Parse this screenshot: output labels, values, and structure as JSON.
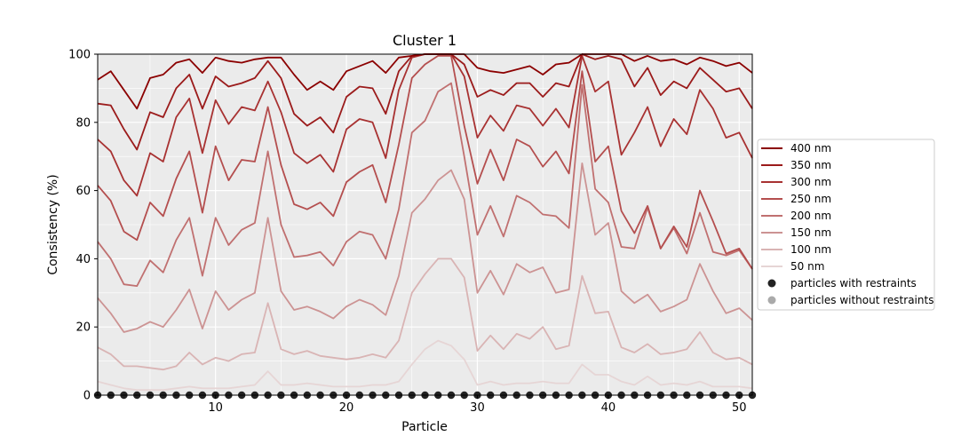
{
  "chart_data": {
    "type": "line",
    "title": "Cluster 1",
    "xlabel": "Particle",
    "ylabel": "Consistency (%)",
    "xlim": [
      1,
      51
    ],
    "ylim": [
      0,
      100
    ],
    "xticks": [
      10,
      20,
      30,
      40,
      50
    ],
    "yticks": [
      0,
      20,
      40,
      60,
      80,
      100
    ],
    "grid": true,
    "legend_position": "right",
    "x": [
      1,
      2,
      3,
      4,
      5,
      6,
      7,
      8,
      9,
      10,
      11,
      12,
      13,
      14,
      15,
      16,
      17,
      18,
      19,
      20,
      21,
      22,
      23,
      24,
      25,
      26,
      27,
      28,
      29,
      30,
      31,
      32,
      33,
      34,
      35,
      36,
      37,
      38,
      39,
      40,
      41,
      42,
      43,
      44,
      45,
      46,
      47,
      48,
      49,
      50,
      51
    ],
    "series": [
      {
        "name": "400 nm",
        "color": "#8b0000",
        "values": [
          92.5,
          95,
          89.5,
          84,
          93,
          94,
          97.5,
          98.5,
          94.5,
          99,
          98,
          97.5,
          98.5,
          99,
          99,
          94,
          89.5,
          92,
          89.5,
          95,
          96.5,
          98,
          94.5,
          99,
          99.5,
          100,
          100,
          100,
          100,
          96,
          95,
          94.5,
          95.5,
          96.5,
          94,
          97,
          97.5,
          100,
          100,
          100,
          100,
          98,
          99.5,
          98,
          98.5,
          97,
          99,
          98,
          96.5,
          97.5,
          94.5
        ]
      },
      {
        "name": "350 nm",
        "color": "#9b1b1b",
        "values": [
          85.5,
          85,
          78,
          72,
          83,
          81.5,
          90,
          94,
          84,
          93.5,
          90.5,
          91.5,
          93,
          98,
          93,
          82.5,
          79,
          81.5,
          77,
          87.5,
          90.5,
          90,
          82.5,
          95,
          99.5,
          100,
          100,
          100,
          97,
          87.5,
          89.5,
          88,
          91.5,
          91.5,
          87.5,
          91.5,
          90.5,
          100,
          98.5,
          99.5,
          98.5,
          90.5,
          96,
          88,
          92,
          90,
          96,
          92.5,
          89,
          90,
          84
        ]
      },
      {
        "name": "300 nm",
        "color": "#a83232",
        "values": [
          75,
          71.5,
          63,
          58.5,
          71,
          68.5,
          81.5,
          87,
          71,
          86.5,
          79.5,
          84.5,
          83.5,
          92,
          83,
          71,
          68,
          70.5,
          65.5,
          78,
          81,
          80,
          69.5,
          89.5,
          99,
          100,
          100,
          100,
          93.5,
          75.5,
          82,
          77.5,
          85,
          84,
          79,
          84,
          78.5,
          99.5,
          89,
          92,
          70.5,
          77,
          84.5,
          73,
          81,
          76.5,
          89.5,
          84,
          75.5,
          77,
          69.5
        ]
      },
      {
        "name": "250 nm",
        "color": "#b44e4e",
        "values": [
          61.5,
          57,
          48,
          45.5,
          56.5,
          52.5,
          63.5,
          71.5,
          53.5,
          73,
          63,
          69,
          68.5,
          84.5,
          67.5,
          56,
          54.5,
          56.5,
          52.5,
          62.5,
          65.5,
          67.5,
          56.5,
          73.5,
          93,
          97,
          99.5,
          99.5,
          79,
          62,
          72,
          63,
          75,
          73,
          67,
          71.5,
          65,
          95,
          68.5,
          73,
          54,
          47.5,
          55.5,
          43,
          49.5,
          43.5,
          60,
          51,
          41.5,
          43,
          37
        ]
      },
      {
        "name": "200 nm",
        "color": "#c07070",
        "values": [
          45,
          40,
          32.5,
          32,
          39.5,
          36,
          45.5,
          52,
          35,
          52,
          44,
          48.5,
          50.5,
          71.5,
          50,
          40.5,
          41,
          42,
          38,
          45,
          48,
          47,
          40,
          54.5,
          77,
          80.5,
          89,
          91.5,
          70,
          47,
          55.5,
          46.5,
          58.5,
          56.5,
          53,
          52.5,
          49,
          91,
          60.5,
          56.5,
          43.5,
          43,
          55,
          43,
          49,
          41.5,
          53.5,
          42,
          41,
          42.5,
          37
        ]
      },
      {
        "name": "150 nm",
        "color": "#cc9393",
        "values": [
          28.5,
          24,
          18.5,
          19.5,
          21.5,
          20,
          25,
          31,
          19.5,
          30.5,
          25,
          28,
          30,
          52,
          30.5,
          25,
          26,
          24.5,
          22.5,
          26,
          28,
          26.5,
          23.5,
          35,
          53.5,
          57.5,
          63,
          66,
          57.5,
          30,
          36.5,
          29.5,
          38.5,
          36,
          37.5,
          30,
          31,
          68,
          47,
          50.5,
          30.5,
          27,
          29.5,
          24.5,
          26,
          28,
          38.5,
          30.5,
          24,
          25.5,
          22
        ]
      },
      {
        "name": "100 nm",
        "color": "#d9b4b4",
        "values": [
          14,
          12,
          8.5,
          8.5,
          8,
          7.5,
          8.5,
          12.5,
          9,
          11,
          10,
          12,
          12.5,
          27,
          13.5,
          12,
          13,
          11.5,
          11,
          10.5,
          11,
          12,
          11,
          16,
          30,
          35.5,
          40,
          40,
          34.5,
          13,
          17.5,
          13.5,
          18,
          16.5,
          20,
          13.5,
          14.5,
          35,
          24,
          24.5,
          14,
          12.5,
          15,
          12,
          12.5,
          13.5,
          18.5,
          12.5,
          10.5,
          11,
          9
        ]
      },
      {
        "name": "50 nm",
        "color": "#e6d5d5",
        "values": [
          4,
          3,
          2,
          1.5,
          1.5,
          1.5,
          2,
          2.5,
          2,
          2,
          2,
          2.5,
          3,
          7,
          3,
          3,
          3.5,
          3,
          2.5,
          2.5,
          2.5,
          3,
          3,
          4,
          9,
          13.5,
          16,
          14.5,
          10.5,
          3,
          4,
          3,
          3.5,
          3.5,
          4,
          3.5,
          3.5,
          9,
          6,
          6,
          4,
          3,
          5.5,
          3,
          3.5,
          3,
          4,
          2.5,
          2.5,
          2.5,
          2
        ]
      }
    ],
    "markers": {
      "name": "particles with restraints",
      "color": "#222222",
      "x": [
        1,
        2,
        3,
        4,
        5,
        6,
        7,
        8,
        9,
        10,
        11,
        12,
        13,
        14,
        15,
        16,
        17,
        18,
        19,
        20,
        21,
        22,
        23,
        24,
        25,
        26,
        27,
        28,
        29,
        30,
        31,
        32,
        33,
        34,
        35,
        36,
        37,
        38,
        39,
        40,
        41,
        42,
        43,
        44,
        45,
        46,
        47,
        48,
        49,
        50,
        51
      ],
      "y": 0
    },
    "legend": [
      {
        "label": "400 nm",
        "kind": "line",
        "color": "#8b0000"
      },
      {
        "label": "350 nm",
        "kind": "line",
        "color": "#9b1b1b"
      },
      {
        "label": "300 nm",
        "kind": "line",
        "color": "#a83232"
      },
      {
        "label": "250 nm",
        "kind": "line",
        "color": "#b44e4e"
      },
      {
        "label": "200 nm",
        "kind": "line",
        "color": "#c07070"
      },
      {
        "label": "150 nm",
        "kind": "line",
        "color": "#cc9393"
      },
      {
        "label": "100 nm",
        "kind": "line",
        "color": "#d9b4b4"
      },
      {
        "label": "50 nm",
        "kind": "line",
        "color": "#e6d5d5"
      },
      {
        "label": "particles with restraints",
        "kind": "dot",
        "color": "#222222"
      },
      {
        "label": "particles without restraints",
        "kind": "dot",
        "color": "#aaaaaa"
      }
    ]
  }
}
